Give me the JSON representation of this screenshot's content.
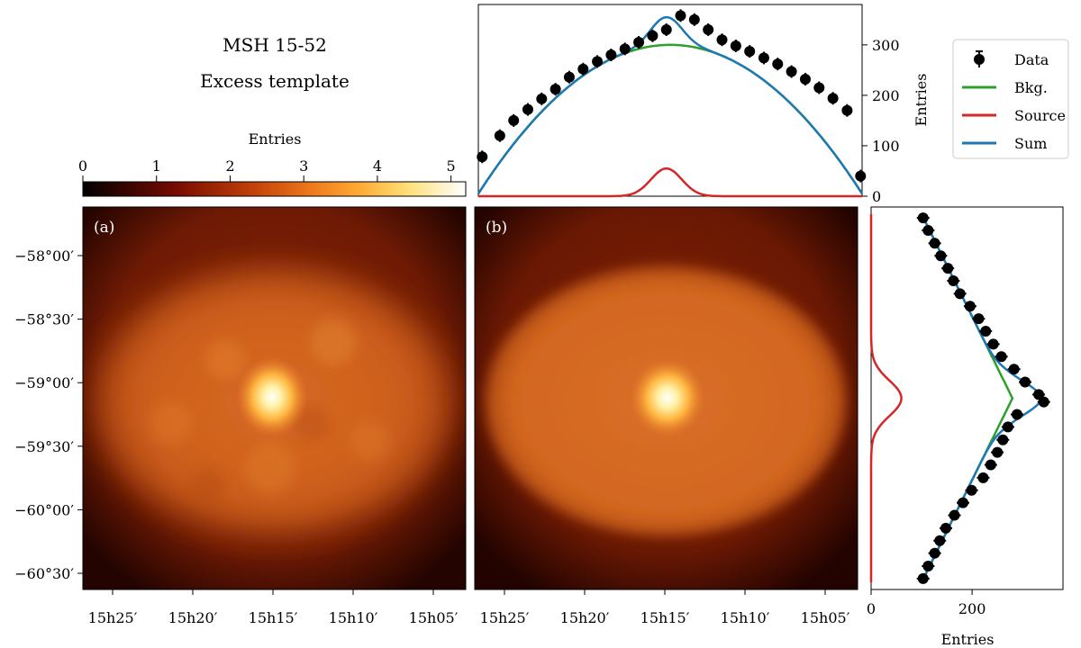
{
  "title": {
    "line1": "MSH 15-52",
    "line2": "Excess template"
  },
  "colorbar": {
    "label": "Entries",
    "ticks": [
      "0",
      "1",
      "2",
      "3",
      "4",
      "5"
    ],
    "range": [
      0,
      5.2
    ],
    "colormap": "afmhot"
  },
  "panels": [
    {
      "label": "(a)",
      "kind": "excess map"
    },
    {
      "label": "(b)",
      "kind": "model map"
    }
  ],
  "map_axes": {
    "ra_ticks": [
      "15h25′",
      "15h20′",
      "15h15′",
      "15h10′",
      "15h05′"
    ],
    "dec_ticks": [
      "−58°00′",
      "−58°30′",
      "−59°00′",
      "−59°30′",
      "−60°00′",
      "−60°30′"
    ]
  },
  "colors": {
    "data": "#000000",
    "bkg": "#2ca02c",
    "source": "#d62728",
    "sum": "#1f77b4"
  },
  "legend": {
    "entries": [
      {
        "key": "data",
        "label": "Data"
      },
      {
        "key": "bkg",
        "label": "Bkg."
      },
      {
        "key": "source",
        "label": "Source"
      },
      {
        "key": "sum",
        "label": "Sum"
      }
    ]
  },
  "chart_data": [
    {
      "type": "scatter",
      "name": "top projection",
      "ylabel": "Entries",
      "ylim": [
        0,
        380
      ],
      "xlim": [
        0,
        1
      ],
      "yticks": [
        "0",
        "100",
        "200",
        "300"
      ],
      "data": {
        "x": [
          0.01,
          0.056,
          0.092,
          0.129,
          0.165,
          0.201,
          0.237,
          0.273,
          0.31,
          0.346,
          0.382,
          0.418,
          0.454,
          0.49,
          0.527,
          0.563,
          0.599,
          0.635,
          0.671,
          0.707,
          0.744,
          0.78,
          0.816,
          0.852,
          0.888,
          0.924,
          0.961,
          0.996
        ],
        "y": [
          78,
          120,
          150,
          172,
          193,
          212,
          236,
          252,
          267,
          280,
          292,
          305,
          318,
          330,
          358,
          350,
          330,
          310,
          298,
          287,
          274,
          262,
          247,
          232,
          215,
          194,
          170,
          40
        ]
      },
      "model": {
        "bkg_peak": 300,
        "bkg_floor": 5,
        "source_amp": 55,
        "source_center": 0.49,
        "source_sigma": 0.04
      }
    },
    {
      "type": "scatter",
      "name": "right projection",
      "xlabel": "Entries",
      "xlim": [
        0,
        380
      ],
      "xticks": [
        "0",
        "200"
      ],
      "ylim": [
        0,
        1
      ],
      "data": {
        "t": [
          0.01,
          0.044,
          0.079,
          0.113,
          0.147,
          0.181,
          0.216,
          0.25,
          0.284,
          0.318,
          0.353,
          0.387,
          0.421,
          0.456,
          0.49,
          0.51,
          0.544,
          0.578,
          0.613,
          0.647,
          0.681,
          0.716,
          0.75,
          0.784,
          0.818,
          0.853,
          0.887,
          0.921,
          0.956,
          0.99
        ],
        "x": [
          103,
          113,
          126,
          138,
          152,
          163,
          176,
          196,
          213,
          227,
          242,
          258,
          283,
          305,
          332,
          342,
          289,
          271,
          261,
          250,
          237,
          222,
          199,
          182,
          165,
          148,
          136,
          126,
          113,
          103
        ]
      },
      "model": {
        "bkg_peak": 280,
        "bkg_floor": 100,
        "source_amp": 60,
        "source_center": 0.5,
        "source_sigma": 0.048
      }
    }
  ]
}
